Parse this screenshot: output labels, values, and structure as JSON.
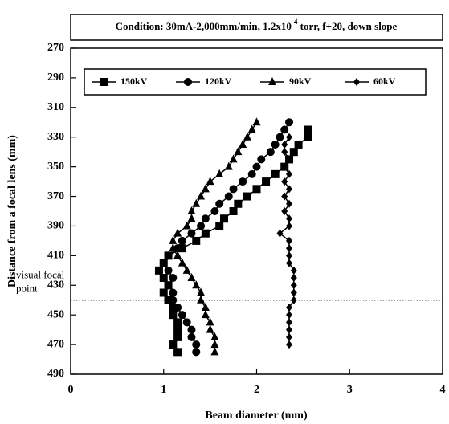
{
  "chart_data": {
    "type": "line",
    "title": [
      "Condition: 30mA-2,000mm/min, 1.2x10",
      "-4",
      " torr, f+20, down slope"
    ],
    "x_label": "Beam diameter (mm)",
    "y_label": "Distance from a focal lens (mm)",
    "xlim": [
      0,
      4
    ],
    "xticks": [
      0,
      1,
      2,
      3,
      4
    ],
    "ylim": [
      270,
      490
    ],
    "yticks": [
      270,
      290,
      310,
      330,
      350,
      370,
      390,
      410,
      430,
      450,
      470,
      490
    ],
    "y_inverted": true,
    "annotation": {
      "lines": [
        "visual focal",
        "point"
      ],
      "y": 440
    },
    "series": [
      {
        "name": "150kV",
        "marker": "square",
        "color": "#000000",
        "x": [
          2.55,
          2.55,
          2.45,
          2.4,
          2.35,
          2.3,
          2.2,
          2.1,
          2.0,
          1.9,
          1.8,
          1.75,
          1.65,
          1.6,
          1.45,
          1.35,
          1.2,
          1.05,
          1.0,
          0.95,
          1.0,
          1.05,
          1.0,
          1.05,
          1.1,
          1.1,
          1.15,
          1.15,
          1.15,
          1.1,
          1.15
        ],
        "values": [
          325,
          330,
          335,
          340,
          345,
          350,
          355,
          360,
          365,
          370,
          375,
          380,
          385,
          390,
          395,
          400,
          405,
          410,
          415,
          420,
          425,
          430,
          435,
          440,
          445,
          450,
          455,
          460,
          465,
          470,
          475
        ]
      },
      {
        "name": "120kV",
        "marker": "circle",
        "color": "#000000",
        "x": [
          2.35,
          2.3,
          2.25,
          2.2,
          2.15,
          2.05,
          2.0,
          1.95,
          1.85,
          1.75,
          1.7,
          1.6,
          1.55,
          1.45,
          1.4,
          1.3,
          1.2,
          1.15,
          1.05,
          1.0,
          1.05,
          1.1,
          1.05,
          1.1,
          1.1,
          1.15,
          1.2,
          1.25,
          1.3,
          1.3,
          1.35,
          1.35
        ],
        "values": [
          320,
          325,
          330,
          335,
          340,
          345,
          350,
          355,
          360,
          365,
          370,
          375,
          380,
          385,
          390,
          395,
          400,
          405,
          410,
          415,
          420,
          425,
          430,
          435,
          440,
          445,
          450,
          455,
          460,
          465,
          470,
          475
        ]
      },
      {
        "name": "90kV",
        "marker": "triangle",
        "color": "#000000",
        "x": [
          2.0,
          1.95,
          1.9,
          1.85,
          1.8,
          1.75,
          1.7,
          1.6,
          1.5,
          1.45,
          1.4,
          1.35,
          1.3,
          1.3,
          1.25,
          1.15,
          1.1,
          1.1,
          1.15,
          1.2,
          1.25,
          1.3,
          1.35,
          1.4,
          1.4,
          1.45,
          1.45,
          1.5,
          1.5,
          1.55,
          1.55,
          1.55
        ],
        "values": [
          320,
          325,
          330,
          335,
          340,
          345,
          350,
          355,
          360,
          365,
          370,
          375,
          380,
          385,
          390,
          395,
          400,
          405,
          410,
          415,
          420,
          425,
          430,
          435,
          440,
          445,
          450,
          455,
          460,
          465,
          470,
          475
        ]
      },
      {
        "name": "60kV",
        "marker": "diamond",
        "color": "#000000",
        "x": [
          2.35,
          2.3,
          2.3,
          2.35,
          2.3,
          2.35,
          2.3,
          2.35,
          2.3,
          2.35,
          2.3,
          2.35,
          2.35,
          2.25,
          2.35,
          2.35,
          2.35,
          2.35,
          2.4,
          2.4,
          2.4,
          2.4,
          2.4,
          2.35,
          2.35,
          2.35,
          2.35,
          2.35,
          2.35
        ],
        "values": [
          330,
          335,
          340,
          345,
          350,
          355,
          360,
          365,
          370,
          375,
          380,
          385,
          390,
          395,
          400,
          405,
          410,
          415,
          420,
          425,
          430,
          435,
          440,
          445,
          450,
          455,
          460,
          465,
          470
        ]
      }
    ]
  }
}
